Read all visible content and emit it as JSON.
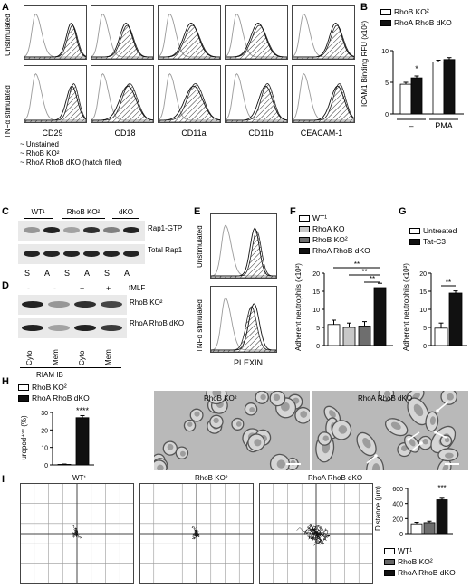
{
  "panel_labels": [
    "A",
    "B",
    "C",
    "D",
    "E",
    "F",
    "G",
    "H",
    "I"
  ],
  "panelA": {
    "row_labels": [
      "Unstimulated",
      "TNFα stimulated"
    ],
    "col_labels": [
      "CD29",
      "CD18",
      "CD11a",
      "CD11b",
      "CEACAM-1"
    ],
    "legend": [
      "Unstained",
      "RhoB KO²",
      "RhoA RhoB dKO (hatch filled)"
    ]
  },
  "panelB": {
    "legend": [
      "RhoB KO²",
      "RhoA RhoB dKO"
    ],
    "ylabel": "ICAM1 Binding RFU (x10²)",
    "yticks": [
      "0",
      "5",
      "10"
    ],
    "categories": [
      "–",
      "PMA"
    ],
    "sig": "*"
  },
  "panelC": {
    "groups": [
      "WT¹",
      "RhoB KO²",
      "dKO"
    ],
    "lanes": [
      "S",
      "A",
      "S",
      "A",
      "S",
      "A"
    ],
    "bands": [
      "Rap1-GTP",
      "Total Rap1"
    ]
  },
  "panelD": {
    "fmlf_label": "fMLF",
    "fmlf_signs": [
      "-",
      "-",
      "+",
      "+"
    ],
    "bands": [
      "RhoB KO²",
      "RhoA RhoB dKO"
    ],
    "lanes": [
      "Cyto",
      "Mem",
      "Cyto",
      "Mem"
    ],
    "footer": "RIAM IB"
  },
  "panelE": {
    "row_labels": [
      "Unstimulated",
      "TNFα stimulated"
    ],
    "xlabel": "PLEXIN"
  },
  "panelF": {
    "legend": [
      "WT¹",
      "RhoA KO",
      "RhoB KO²",
      "RhoA RhoB dKO"
    ],
    "ylabel": "Adherent neutrophils (x10²)",
    "yticks": [
      "0",
      "5",
      "10",
      "15",
      "20"
    ],
    "sig": [
      "**",
      "**",
      "**"
    ]
  },
  "panelG": {
    "legend": [
      "Untreated",
      "Tat-C3"
    ],
    "ylabel": "Adherent neutrophils (x10²)",
    "yticks": [
      "0",
      "5",
      "10",
      "15",
      "20"
    ],
    "sig": "**"
  },
  "panelH": {
    "legend": [
      "RhoB KO²",
      "RhoA RhoB dKO"
    ],
    "ylabel": "uropod⁺ᵛᵉ (%)",
    "yticks": [
      "0",
      "10",
      "20",
      "30"
    ],
    "sig": "****",
    "image_titles": [
      "RhoB KO²",
      "RhoA RhoB dKO"
    ]
  },
  "panelI": {
    "plot_titles": [
      "WT¹",
      "RhoB KO²",
      "RhoA RhoB dKO"
    ],
    "ylabel": "Distance (μm)",
    "yticks": [
      "0",
      "200",
      "400",
      "600"
    ],
    "sig": "***",
    "legend": [
      "WT¹",
      "RhoB KO²",
      "RhoA RhoB dKO"
    ]
  },
  "colors": {
    "white_bar": "#ffffff",
    "black_bar": "#111111",
    "light_gray": "#c8c8c8",
    "mid_gray": "#6e6e6e",
    "dark": "#111111"
  },
  "chart_data": [
    {
      "type": "bar",
      "panel": "B",
      "categories": [
        "–",
        "PMA"
      ],
      "series": [
        {
          "name": "RhoB KO²",
          "values": [
            4.7,
            8.2
          ]
        },
        {
          "name": "RhoA RhoB dKO",
          "values": [
            5.7,
            8.6
          ]
        }
      ],
      "ylabel": "ICAM1 Binding RFU (x10²)",
      "ylim": [
        0,
        10
      ]
    },
    {
      "type": "bar",
      "panel": "F",
      "categories": [
        "WT¹",
        "RhoA KO",
        "RhoB KO²",
        "RhoA RhoB dKO"
      ],
      "values": [
        5.8,
        5.0,
        5.4,
        16.0
      ],
      "ylabel": "Adherent neutrophils (x10²)",
      "ylim": [
        0,
        20
      ]
    },
    {
      "type": "bar",
      "panel": "G",
      "categories": [
        "Untreated",
        "Tat-C3"
      ],
      "values": [
        4.8,
        14.5
      ],
      "ylabel": "Adherent neutrophils (x10²)",
      "ylim": [
        0,
        20
      ]
    },
    {
      "type": "bar",
      "panel": "H",
      "categories": [
        "RhoB KO²",
        "RhoA RhoB dKO"
      ],
      "values": [
        0.3,
        27
      ],
      "ylabel": "uropod⁺ᵛᵉ (%)",
      "ylim": [
        0,
        30
      ]
    },
    {
      "type": "bar",
      "panel": "I",
      "categories": [
        "WT¹",
        "RhoB KO²",
        "RhoA RhoB dKO"
      ],
      "values": [
        130,
        145,
        450
      ],
      "ylabel": "Distance (μm)",
      "ylim": [
        0,
        600
      ]
    }
  ]
}
